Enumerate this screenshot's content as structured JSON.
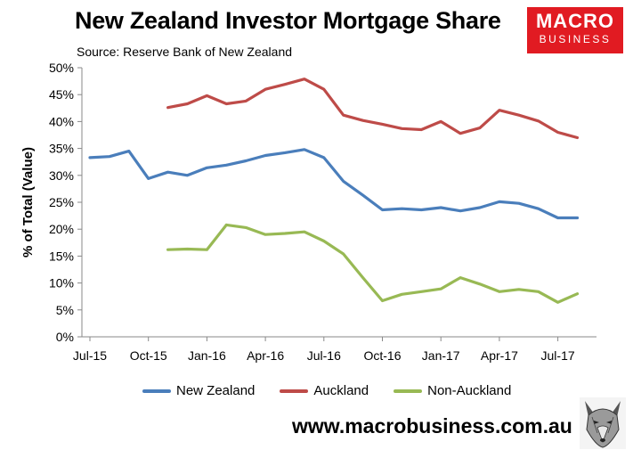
{
  "header": {
    "title": "New Zealand Investor Mortgage Share",
    "subtitle": "Source: Reserve Bank of New Zealand"
  },
  "logo": {
    "line1": "MACRO",
    "line2": "BUSINESS"
  },
  "footer": {
    "website": "www.macrobusiness.com.au"
  },
  "chart_data": {
    "type": "line",
    "title": "New Zealand Investor Mortgage Share",
    "subtitle": "Source: Reserve Bank of New Zealand",
    "xlabel": "",
    "ylabel": "% of Total (Value)",
    "ylim": [
      0,
      50
    ],
    "yticks": [
      0,
      5,
      10,
      15,
      20,
      25,
      30,
      35,
      40,
      45,
      50
    ],
    "ytick_format": "%",
    "xtick_labels": [
      "Jul-15",
      "Oct-15",
      "Jan-16",
      "Apr-16",
      "Jul-16",
      "Oct-16",
      "Jan-17",
      "Apr-17",
      "Jul-17"
    ],
    "x": [
      "Jul-15",
      "Aug-15",
      "Sep-15",
      "Oct-15",
      "Nov-15",
      "Dec-15",
      "Jan-16",
      "Feb-16",
      "Mar-16",
      "Apr-16",
      "May-16",
      "Jun-16",
      "Jul-16",
      "Aug-16",
      "Sep-16",
      "Oct-16",
      "Nov-16",
      "Dec-16",
      "Jan-17",
      "Feb-17",
      "Mar-17",
      "Apr-17",
      "May-17",
      "Jun-17",
      "Jul-17",
      "Aug-17"
    ],
    "grid": false,
    "legend_position": "bottom",
    "series": [
      {
        "name": "New Zealand",
        "color": "#4a7ebb",
        "values": [
          33.3,
          33.5,
          34.5,
          29.4,
          30.6,
          30.0,
          31.4,
          31.9,
          32.7,
          33.7,
          34.2,
          34.8,
          33.3,
          28.9,
          26.3,
          23.6,
          23.8,
          23.6,
          24.0,
          23.4,
          24.0,
          25.1,
          24.8,
          23.8,
          22.1,
          22.1
        ]
      },
      {
        "name": "Auckland",
        "color": "#be4b48",
        "values": [
          null,
          null,
          null,
          null,
          42.6,
          43.3,
          44.8,
          43.3,
          43.8,
          46.0,
          46.9,
          47.9,
          46.0,
          41.2,
          40.2,
          39.5,
          38.7,
          38.5,
          40.0,
          37.8,
          38.8,
          42.1,
          41.2,
          40.1,
          38.0,
          37.0
        ]
      },
      {
        "name": "Non-Auckland",
        "color": "#98b954",
        "values": [
          null,
          null,
          null,
          null,
          16.2,
          16.3,
          16.2,
          20.8,
          20.3,
          19.0,
          19.2,
          19.5,
          17.8,
          15.4,
          11.0,
          6.7,
          7.9,
          8.4,
          8.9,
          11.0,
          9.8,
          8.4,
          8.8,
          8.4,
          6.4,
          8.0
        ]
      }
    ]
  }
}
